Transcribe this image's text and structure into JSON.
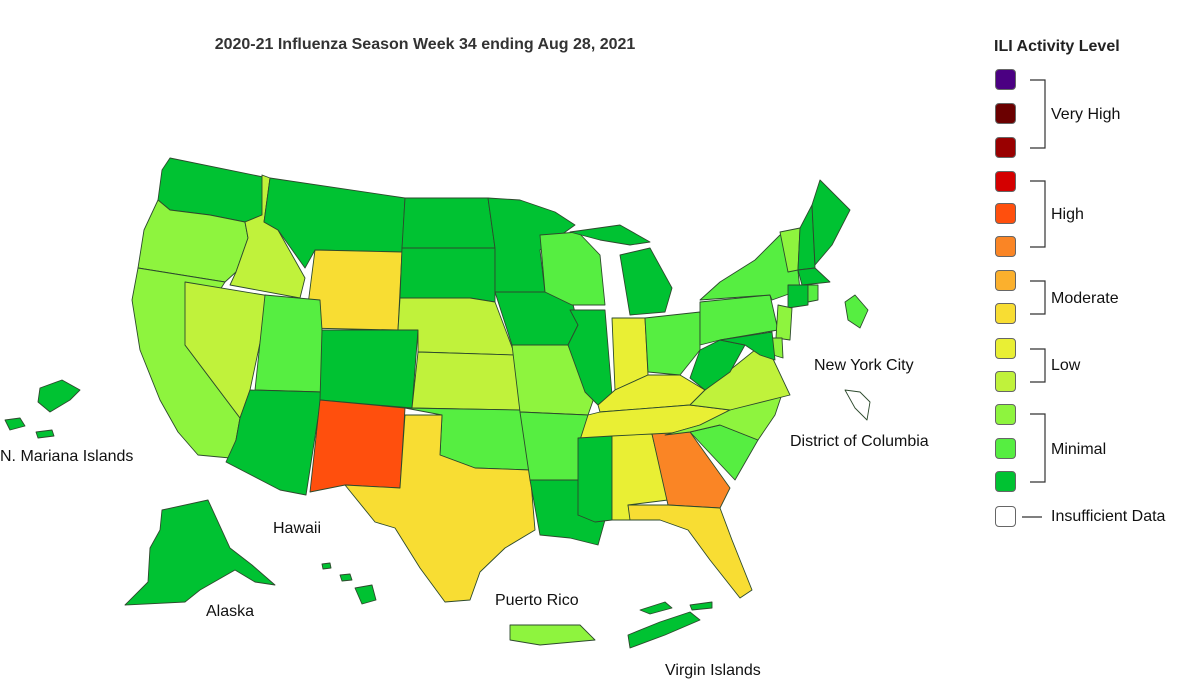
{
  "title": "2020-21 Influenza Season Week 34 ending Aug 28, 2021",
  "legend": {
    "title": "ILI Activity Level",
    "levels": [
      {
        "level": 13,
        "color": "#4b0082"
      },
      {
        "level": 12,
        "color": "#6b0000"
      },
      {
        "level": 11,
        "color": "#990000"
      },
      {
        "level": 10,
        "color": "#d40000"
      },
      {
        "level": 9,
        "color": "#ff4f0d"
      },
      {
        "level": 8,
        "color": "#fa8525"
      },
      {
        "level": 7,
        "color": "#fbb02d"
      },
      {
        "level": 6,
        "color": "#f8dd33"
      },
      {
        "level": 5,
        "color": "#e9ef34"
      },
      {
        "level": 4,
        "color": "#c0f23b"
      },
      {
        "level": 3,
        "color": "#8ef43e"
      },
      {
        "level": 2,
        "color": "#56ee41"
      },
      {
        "level": 1,
        "color": "#00c232"
      },
      {
        "level": 0,
        "color": "#ffffff",
        "insufficient": true
      }
    ],
    "groups": [
      {
        "label": "Very High"
      },
      {
        "label": "High"
      },
      {
        "label": "Moderate"
      },
      {
        "label": "Low"
      },
      {
        "label": "Minimal"
      },
      {
        "label": "Insufficient Data"
      }
    ]
  },
  "territory_labels": {
    "n_mariana": "N. Mariana Islands",
    "hawaii": "Hawaii",
    "alaska": "Alaska",
    "puerto_rico": "Puerto Rico",
    "virgin_islands": "Virgin Islands",
    "nyc": "New York City",
    "dc": "District of Columbia"
  },
  "regions": [
    {
      "id": "WA",
      "level": 1
    },
    {
      "id": "OR",
      "level": 3
    },
    {
      "id": "CA",
      "level": 3
    },
    {
      "id": "ID",
      "level": 4
    },
    {
      "id": "NV",
      "level": 4
    },
    {
      "id": "MT",
      "level": 1
    },
    {
      "id": "WY",
      "level": 6
    },
    {
      "id": "UT",
      "level": 2
    },
    {
      "id": "AZ",
      "level": 1
    },
    {
      "id": "CO",
      "level": 1
    },
    {
      "id": "NM",
      "level": 9
    },
    {
      "id": "ND",
      "level": 1
    },
    {
      "id": "SD",
      "level": 1
    },
    {
      "id": "NE",
      "level": 4
    },
    {
      "id": "KS",
      "level": 4
    },
    {
      "id": "OK",
      "level": 2
    },
    {
      "id": "TX",
      "level": 6
    },
    {
      "id": "MN",
      "level": 1
    },
    {
      "id": "IA",
      "level": 1
    },
    {
      "id": "MO",
      "level": 3
    },
    {
      "id": "AR",
      "level": 2
    },
    {
      "id": "LA",
      "level": 1
    },
    {
      "id": "WI",
      "level": 2
    },
    {
      "id": "IL",
      "level": 1
    },
    {
      "id": "MI",
      "level": 1
    },
    {
      "id": "IN",
      "level": 5
    },
    {
      "id": "OH",
      "level": 2
    },
    {
      "id": "KY",
      "level": 5
    },
    {
      "id": "TN",
      "level": 5
    },
    {
      "id": "MS",
      "level": 1
    },
    {
      "id": "AL",
      "level": 5
    },
    {
      "id": "GA",
      "level": 8
    },
    {
      "id": "FL",
      "level": 6
    },
    {
      "id": "SC",
      "level": 2
    },
    {
      "id": "NC",
      "level": 3
    },
    {
      "id": "VA",
      "level": 4
    },
    {
      "id": "WV",
      "level": 1
    },
    {
      "id": "PA",
      "level": 2
    },
    {
      "id": "NY",
      "level": 2
    },
    {
      "id": "VT",
      "level": 3
    },
    {
      "id": "NH",
      "level": 1
    },
    {
      "id": "ME",
      "level": 1
    },
    {
      "id": "MA",
      "level": 1
    },
    {
      "id": "CT",
      "level": 1
    },
    {
      "id": "RI",
      "level": 2
    },
    {
      "id": "NJ",
      "level": 3
    },
    {
      "id": "DE",
      "level": 3
    },
    {
      "id": "MD",
      "level": 1
    },
    {
      "id": "DC",
      "level": 0
    },
    {
      "id": "NYC",
      "level": 2
    },
    {
      "id": "AK",
      "level": 1
    },
    {
      "id": "HI",
      "level": 1
    },
    {
      "id": "PR",
      "level": 3
    },
    {
      "id": "VI",
      "level": 1
    },
    {
      "id": "MP",
      "level": 1
    }
  ]
}
